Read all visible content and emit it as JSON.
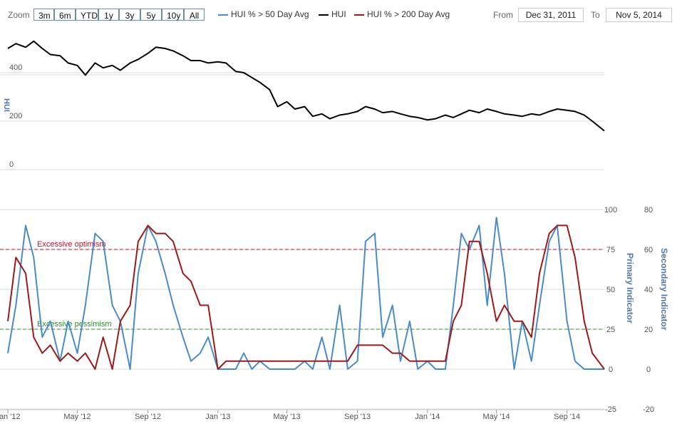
{
  "toolbar": {
    "zoom_label": "Zoom",
    "zoom_buttons": [
      "3m",
      "6m",
      "YTD",
      "1y",
      "3y",
      "5y",
      "10y",
      "All"
    ],
    "from_label": "From",
    "from_value": "Dec 31, 2011",
    "to_label": "To",
    "to_value": "Nov 5, 2014"
  },
  "colors": {
    "hui": "#000000",
    "above50": "#4a8bc8",
    "above200": "#9b1a1a",
    "optimism": "#c8102e",
    "pessimism": "#2e8b2e",
    "grid": "#d8d8d8",
    "axis_title": "#4f79a6"
  },
  "chart_data": [
    {
      "type": "line",
      "ylabel": "HUI",
      "ylim": [
        0,
        580
      ],
      "yticks": [
        0,
        200,
        400
      ],
      "series": [
        {
          "name": "HUI",
          "color": "#000000",
          "x": [
            "2012-01-01",
            "2012-01-15",
            "2012-02-01",
            "2012-02-15",
            "2012-03-01",
            "2012-03-15",
            "2012-04-01",
            "2012-04-15",
            "2012-05-01",
            "2012-05-15",
            "2012-06-01",
            "2012-06-15",
            "2012-07-01",
            "2012-07-15",
            "2012-08-01",
            "2012-08-15",
            "2012-09-01",
            "2012-09-15",
            "2012-10-01",
            "2012-10-15",
            "2012-11-01",
            "2012-11-15",
            "2012-12-01",
            "2012-12-15",
            "2013-01-01",
            "2013-01-15",
            "2013-02-01",
            "2013-02-15",
            "2013-03-01",
            "2013-03-15",
            "2013-04-01",
            "2013-04-15",
            "2013-05-01",
            "2013-05-15",
            "2013-06-01",
            "2013-06-15",
            "2013-07-01",
            "2013-07-15",
            "2013-08-01",
            "2013-08-15",
            "2013-09-01",
            "2013-09-15",
            "2013-10-01",
            "2013-10-15",
            "2013-11-01",
            "2013-11-15",
            "2013-12-01",
            "2013-12-15",
            "2014-01-01",
            "2014-01-15",
            "2014-02-01",
            "2014-02-15",
            "2014-03-01",
            "2014-03-15",
            "2014-04-01",
            "2014-04-15",
            "2014-05-01",
            "2014-05-15",
            "2014-06-01",
            "2014-06-15",
            "2014-07-01",
            "2014-07-15",
            "2014-08-01",
            "2014-08-15",
            "2014-09-01",
            "2014-09-15",
            "2014-10-01",
            "2014-10-15",
            "2014-11-05"
          ],
          "values": [
            500,
            520,
            505,
            530,
            500,
            475,
            470,
            440,
            430,
            390,
            440,
            420,
            430,
            410,
            440,
            455,
            480,
            505,
            500,
            490,
            470,
            450,
            450,
            440,
            445,
            440,
            405,
            400,
            380,
            360,
            330,
            260,
            280,
            250,
            260,
            220,
            230,
            210,
            225,
            230,
            240,
            260,
            250,
            235,
            240,
            230,
            220,
            215,
            205,
            210,
            225,
            215,
            230,
            245,
            235,
            250,
            240,
            230,
            225,
            220,
            230,
            225,
            240,
            250,
            245,
            240,
            225,
            200,
            160
          ]
        }
      ]
    },
    {
      "type": "line",
      "ylabel": "Primary Indicator",
      "y2label": "Secondary Indicator",
      "ylim": [
        -25,
        100
      ],
      "yticks": [
        -25,
        0,
        25,
        50,
        75,
        100
      ],
      "y2ticks": [
        -20,
        0,
        20,
        40,
        60,
        80
      ],
      "xticks": [
        "Jan '12",
        "May '12",
        "Sep '12",
        "Jan '13",
        "May '13",
        "Sep '13",
        "Jan '14",
        "May '14",
        "Sep '14"
      ],
      "annotations": [
        {
          "label": "Excessive optimism",
          "y": 75
        },
        {
          "label": "Excessive pessimism",
          "y": 25
        }
      ],
      "series": [
        {
          "name": "HUI % > 50 Day Avg",
          "color": "#4a8bc8",
          "x": [
            "2012-01-01",
            "2012-01-15",
            "2012-02-01",
            "2012-02-15",
            "2012-03-01",
            "2012-03-15",
            "2012-04-01",
            "2012-04-15",
            "2012-05-01",
            "2012-05-15",
            "2012-06-01",
            "2012-06-15",
            "2012-07-01",
            "2012-07-15",
            "2012-08-01",
            "2012-08-15",
            "2012-09-01",
            "2012-09-15",
            "2012-10-01",
            "2012-10-15",
            "2012-11-01",
            "2012-11-15",
            "2012-12-01",
            "2012-12-15",
            "2013-01-01",
            "2013-01-15",
            "2013-02-01",
            "2013-02-15",
            "2013-03-01",
            "2013-03-15",
            "2013-04-01",
            "2013-04-15",
            "2013-05-01",
            "2013-05-15",
            "2013-06-01",
            "2013-06-15",
            "2013-07-01",
            "2013-07-15",
            "2013-08-01",
            "2013-08-15",
            "2013-09-01",
            "2013-09-15",
            "2013-10-01",
            "2013-10-15",
            "2013-11-01",
            "2013-11-15",
            "2013-12-01",
            "2013-12-15",
            "2014-01-01",
            "2014-01-15",
            "2014-02-01",
            "2014-02-15",
            "2014-03-01",
            "2014-03-15",
            "2014-04-01",
            "2014-04-15",
            "2014-05-01",
            "2014-05-15",
            "2014-06-01",
            "2014-06-15",
            "2014-07-01",
            "2014-07-15",
            "2014-08-01",
            "2014-08-15",
            "2014-09-01",
            "2014-09-15",
            "2014-10-01",
            "2014-10-15",
            "2014-11-05"
          ],
          "values": [
            10,
            40,
            90,
            70,
            20,
            30,
            5,
            30,
            10,
            40,
            85,
            80,
            40,
            30,
            0,
            60,
            90,
            80,
            60,
            40,
            20,
            5,
            10,
            20,
            0,
            0,
            0,
            10,
            0,
            5,
            0,
            0,
            0,
            0,
            5,
            0,
            20,
            0,
            40,
            0,
            5,
            80,
            85,
            20,
            40,
            5,
            30,
            0,
            5,
            0,
            0,
            40,
            85,
            75,
            90,
            40,
            95,
            60,
            0,
            30,
            5,
            40,
            80,
            90,
            30,
            5,
            0,
            0,
            0
          ]
        },
        {
          "name": "HUI % > 200 Day Avg",
          "color": "#9b1a1a",
          "x": [
            "2012-01-01",
            "2012-01-15",
            "2012-02-01",
            "2012-02-15",
            "2012-03-01",
            "2012-03-15",
            "2012-04-01",
            "2012-04-15",
            "2012-05-01",
            "2012-05-15",
            "2012-06-01",
            "2012-06-15",
            "2012-07-01",
            "2012-07-15",
            "2012-08-01",
            "2012-08-15",
            "2012-09-01",
            "2012-09-15",
            "2012-10-01",
            "2012-10-15",
            "2012-11-01",
            "2012-11-15",
            "2012-12-01",
            "2012-12-15",
            "2013-01-01",
            "2013-01-15",
            "2013-02-01",
            "2013-02-15",
            "2013-03-01",
            "2013-03-15",
            "2013-04-01",
            "2013-04-15",
            "2013-05-01",
            "2013-05-15",
            "2013-06-01",
            "2013-06-15",
            "2013-07-01",
            "2013-07-15",
            "2013-08-01",
            "2013-08-15",
            "2013-09-01",
            "2013-09-15",
            "2013-10-01",
            "2013-10-15",
            "2013-11-01",
            "2013-11-15",
            "2013-12-01",
            "2013-12-15",
            "2014-01-01",
            "2014-01-15",
            "2014-02-01",
            "2014-02-15",
            "2014-03-01",
            "2014-03-15",
            "2014-04-01",
            "2014-04-15",
            "2014-05-01",
            "2014-05-15",
            "2014-06-01",
            "2014-06-15",
            "2014-07-01",
            "2014-07-15",
            "2014-08-01",
            "2014-08-15",
            "2014-09-01",
            "2014-09-15",
            "2014-10-01",
            "2014-10-15",
            "2014-11-05"
          ],
          "values": [
            30,
            70,
            60,
            20,
            10,
            15,
            5,
            10,
            5,
            10,
            0,
            20,
            0,
            30,
            40,
            80,
            90,
            85,
            85,
            80,
            60,
            55,
            40,
            40,
            0,
            5,
            5,
            5,
            5,
            5,
            5,
            5,
            5,
            5,
            5,
            5,
            5,
            5,
            5,
            5,
            15,
            15,
            15,
            15,
            10,
            10,
            5,
            5,
            5,
            5,
            5,
            30,
            40,
            80,
            80,
            60,
            30,
            40,
            30,
            30,
            20,
            60,
            85,
            90,
            90,
            70,
            30,
            10,
            0
          ]
        }
      ]
    }
  ]
}
